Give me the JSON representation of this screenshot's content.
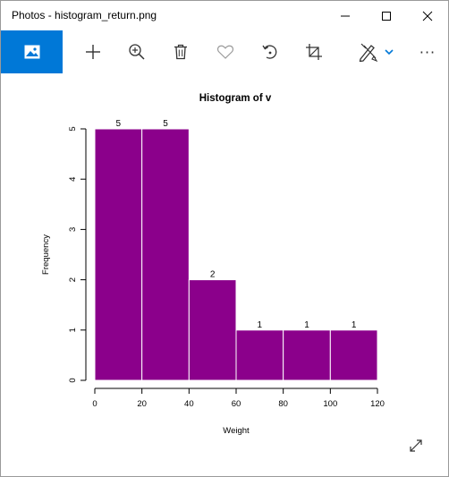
{
  "window": {
    "title": "Photos - histogram_return.png",
    "controls": [
      "minimize",
      "maximize",
      "close"
    ]
  },
  "toolbar": {
    "items": [
      {
        "name": "view-image",
        "icon": "image-icon",
        "active": true
      },
      {
        "name": "add",
        "icon": "plus-icon"
      },
      {
        "name": "zoom",
        "icon": "zoom-in-icon"
      },
      {
        "name": "delete",
        "icon": "trash-icon"
      },
      {
        "name": "favorite",
        "icon": "heart-icon"
      },
      {
        "name": "rotate",
        "icon": "rotate-icon"
      },
      {
        "name": "crop",
        "icon": "crop-icon"
      },
      {
        "name": "edit",
        "icon": "edit-draw-icon"
      },
      {
        "name": "more",
        "icon": "more-icon"
      }
    ],
    "more_label": "···",
    "accent_color": "#0078d7"
  },
  "fullscreen": {
    "icon": "expand-icon"
  },
  "chart_data": {
    "type": "bar",
    "title": "Histogram of v",
    "xlabel": "Weight",
    "ylabel": "Frequency",
    "bins": [
      [
        0,
        20
      ],
      [
        20,
        40
      ],
      [
        40,
        60
      ],
      [
        60,
        80
      ],
      [
        80,
        100
      ],
      [
        100,
        120
      ]
    ],
    "values": [
      5,
      5,
      2,
      1,
      1,
      1
    ],
    "xlim": [
      0,
      120
    ],
    "ylim": [
      0,
      5
    ],
    "xticks": [
      0,
      20,
      40,
      60,
      80,
      100,
      120
    ],
    "yticks": [
      0,
      1,
      2,
      3,
      4,
      5
    ],
    "bar_color": "#8b008b",
    "border_color": "#ffffff",
    "data_labels": true,
    "grid": false
  }
}
